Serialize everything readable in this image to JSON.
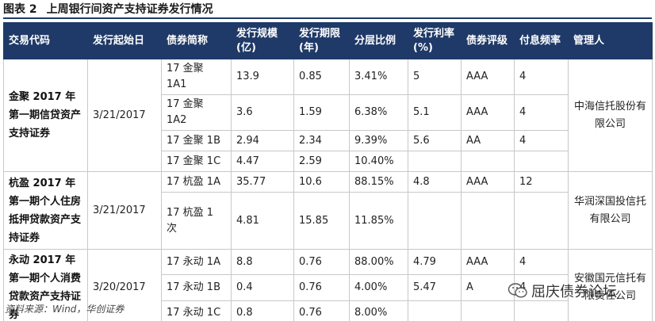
{
  "caption": {
    "label": "图表 2",
    "text": "上周银行间资产支持证券发行情况"
  },
  "headers": [
    "交易代码",
    "发行起始日",
    "债券简称",
    "发行规模(亿)",
    "发行期限(年)",
    "分层比例",
    "发行利率(%)",
    "债券评级",
    "付息频率",
    "管理人"
  ],
  "deals": [
    {
      "code": "金聚 2017 年第一期信贷资产支持证券",
      "date": "3/21/2017",
      "manager": "中海信托股份有限公司",
      "tranches": [
        {
          "name": "17 金聚 1A1",
          "size": "13.9",
          "term": "0.85",
          "ratio": "3.41%",
          "rate": "5",
          "rating": "AAA",
          "freq": "4"
        },
        {
          "name": "17 金聚 1A2",
          "size": "3.6",
          "term": "1.59",
          "ratio": "6.38%",
          "rate": "5.1",
          "rating": "AAA",
          "freq": "4"
        },
        {
          "name": "17 金聚 1B",
          "size": "2.94",
          "term": "2.34",
          "ratio": "9.39%",
          "rate": "5.6",
          "rating": "AA",
          "freq": "4"
        },
        {
          "name": "17 金聚 1C",
          "size": "4.47",
          "term": "2.59",
          "ratio": "10.40%",
          "rate": "",
          "rating": "",
          "freq": ""
        }
      ]
    },
    {
      "code": "杭盈 2017 年第一期个人住房抵押贷款资产支持证券",
      "date": "3/21/2017",
      "manager": "华润深国投信托有限公司",
      "tranches": [
        {
          "name": "17 杭盈 1A",
          "size": "35.77",
          "term": "10.6",
          "ratio": "88.15%",
          "rate": "4.8",
          "rating": "AAA",
          "freq": "12"
        },
        {
          "name": "17 杭盈 1 次",
          "size": "4.81",
          "term": "15.85",
          "ratio": "11.85%",
          "rate": "",
          "rating": "",
          "freq": ""
        }
      ]
    },
    {
      "code": "永动 2017 年第一期个人消费贷款资产支持证券",
      "date": "3/20/2017",
      "manager": "安徽国元信托有限责任公司",
      "tranches": [
        {
          "name": "17 永动 1A",
          "size": "8.8",
          "term": "0.76",
          "ratio": "88.00%",
          "rate": "4.79",
          "rating": "AAA",
          "freq": "4"
        },
        {
          "name": "17 永动 1B",
          "size": "0.4",
          "term": "0.76",
          "ratio": "4.00%",
          "rate": "5.47",
          "rating": "A",
          "freq": "4"
        },
        {
          "name": "17 永动 1C",
          "size": "0.8",
          "term": "0.76",
          "ratio": "8.00%",
          "rate": "",
          "rating": "",
          "freq": ""
        }
      ]
    }
  ],
  "source": "资料来源：Wind，华创证券",
  "watermark": "屈庆债券论坛",
  "colors": {
    "header_bg": "#1f3a68",
    "header_text": "#ffffff",
    "border": "#c8c8c8"
  }
}
